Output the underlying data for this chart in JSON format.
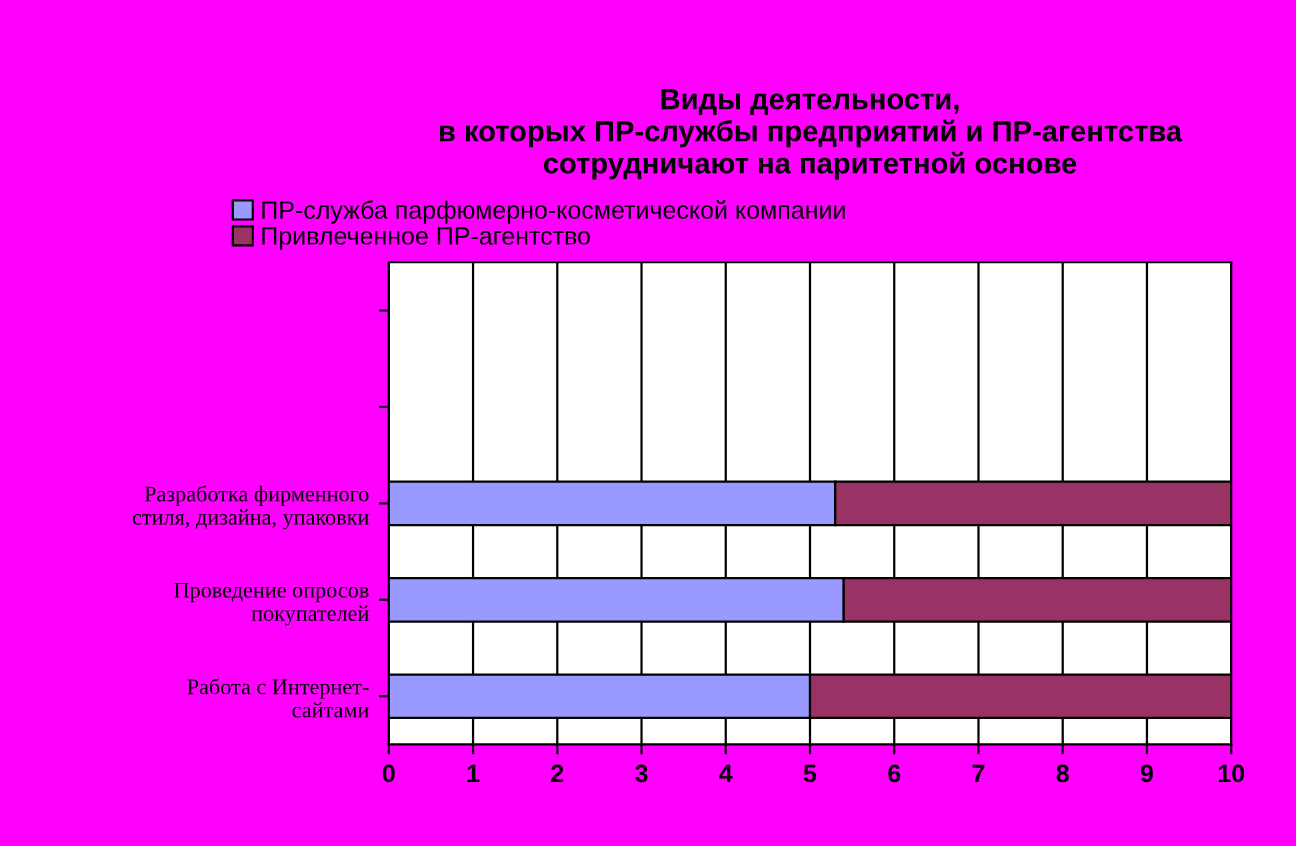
{
  "chart_data": {
    "type": "bar",
    "orientation": "horizontal",
    "stacked": true,
    "title": "Виды деятельности,\nв которых ПР-службы предприятий и ПР-агентства\nсотрудничают на паритетной основе",
    "categories": [
      null,
      null,
      "Разработка фирменного\nстиля, дизайна, упаковки",
      "Проведение опросов\nпокупателей",
      "Работа с Интернет-\nсайтами"
    ],
    "series": [
      {
        "name": "ПР-служба парфюмерно-косметической компании",
        "color": "#9999ff",
        "values": [
          null,
          null,
          5.3,
          5.4,
          5.0
        ]
      },
      {
        "name": "Привлеченное ПР-агентство",
        "color": "#993366",
        "values": [
          null,
          null,
          4.7,
          4.6,
          5.0
        ]
      }
    ],
    "xlim": [
      0,
      10
    ],
    "xticks": [
      0,
      1,
      2,
      3,
      4,
      5,
      6,
      7,
      8,
      9,
      10
    ],
    "grid": "x",
    "legend": "top left"
  }
}
